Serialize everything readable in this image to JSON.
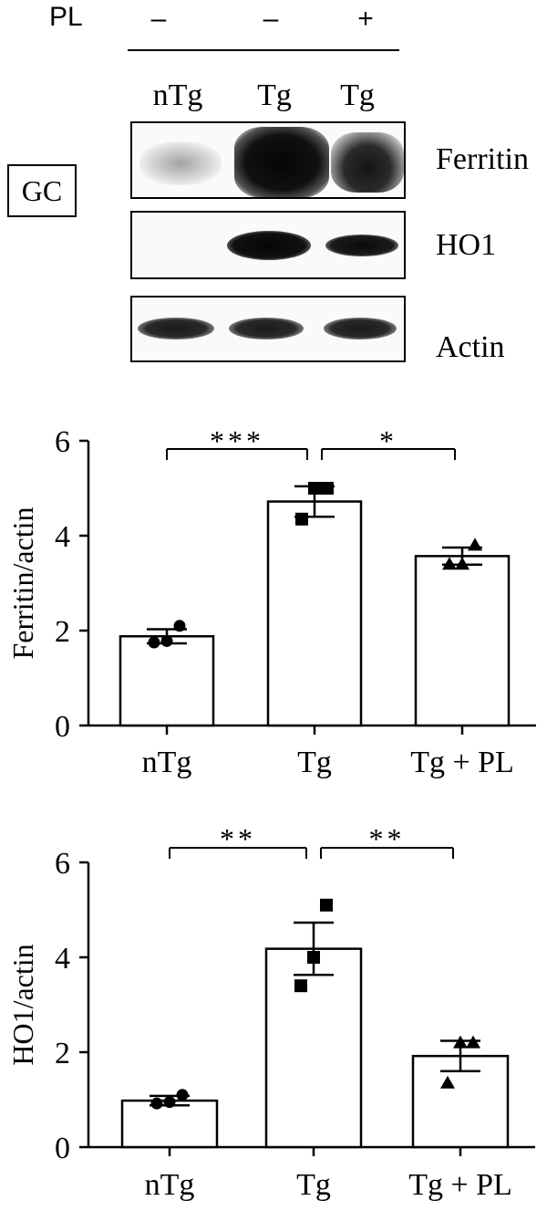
{
  "blot": {
    "treatment_label": "PL",
    "pl_signs": [
      "–",
      "–",
      "+"
    ],
    "lanes": [
      "nTg",
      "Tg",
      "Tg"
    ],
    "panel_label": "GC",
    "bands": [
      "Ferritin",
      "HO1",
      "Actin"
    ]
  },
  "chart_data": [
    {
      "type": "bar",
      "categories": [
        "nTg",
        "Tg",
        "Tg + PL"
      ],
      "values": [
        1.88,
        4.72,
        3.57
      ],
      "errors": [
        0.15,
        0.32,
        0.18
      ],
      "points": [
        [
          1.75,
          1.78,
          2.1
        ],
        [
          4.35,
          5.0,
          5.0
        ],
        [
          3.4,
          3.4,
          3.8
        ]
      ],
      "markers": [
        "circle",
        "square",
        "triangle"
      ],
      "ylabel": "Ferritin/actin",
      "ylim": [
        0,
        6
      ],
      "yticks": [
        0,
        2,
        4,
        6
      ],
      "significance": [
        {
          "from": 0,
          "to": 1,
          "label": "***"
        },
        {
          "from": 1,
          "to": 2,
          "label": "*"
        }
      ]
    },
    {
      "type": "bar",
      "categories": [
        "nTg",
        "Tg",
        "Tg + PL"
      ],
      "values": [
        0.98,
        4.18,
        1.92
      ],
      "errors": [
        0.1,
        0.55,
        0.32
      ],
      "points": [
        [
          0.92,
          0.95,
          1.1
        ],
        [
          3.4,
          4.0,
          5.1
        ],
        [
          1.35,
          2.2,
          2.2
        ]
      ],
      "markers": [
        "circle",
        "square",
        "triangle"
      ],
      "ylabel": "HO1/actin",
      "ylim": [
        0,
        6
      ],
      "yticks": [
        0,
        2,
        4,
        6
      ],
      "significance": [
        {
          "from": 0,
          "to": 1,
          "label": "**"
        },
        {
          "from": 1,
          "to": 2,
          "label": "**"
        }
      ]
    }
  ]
}
